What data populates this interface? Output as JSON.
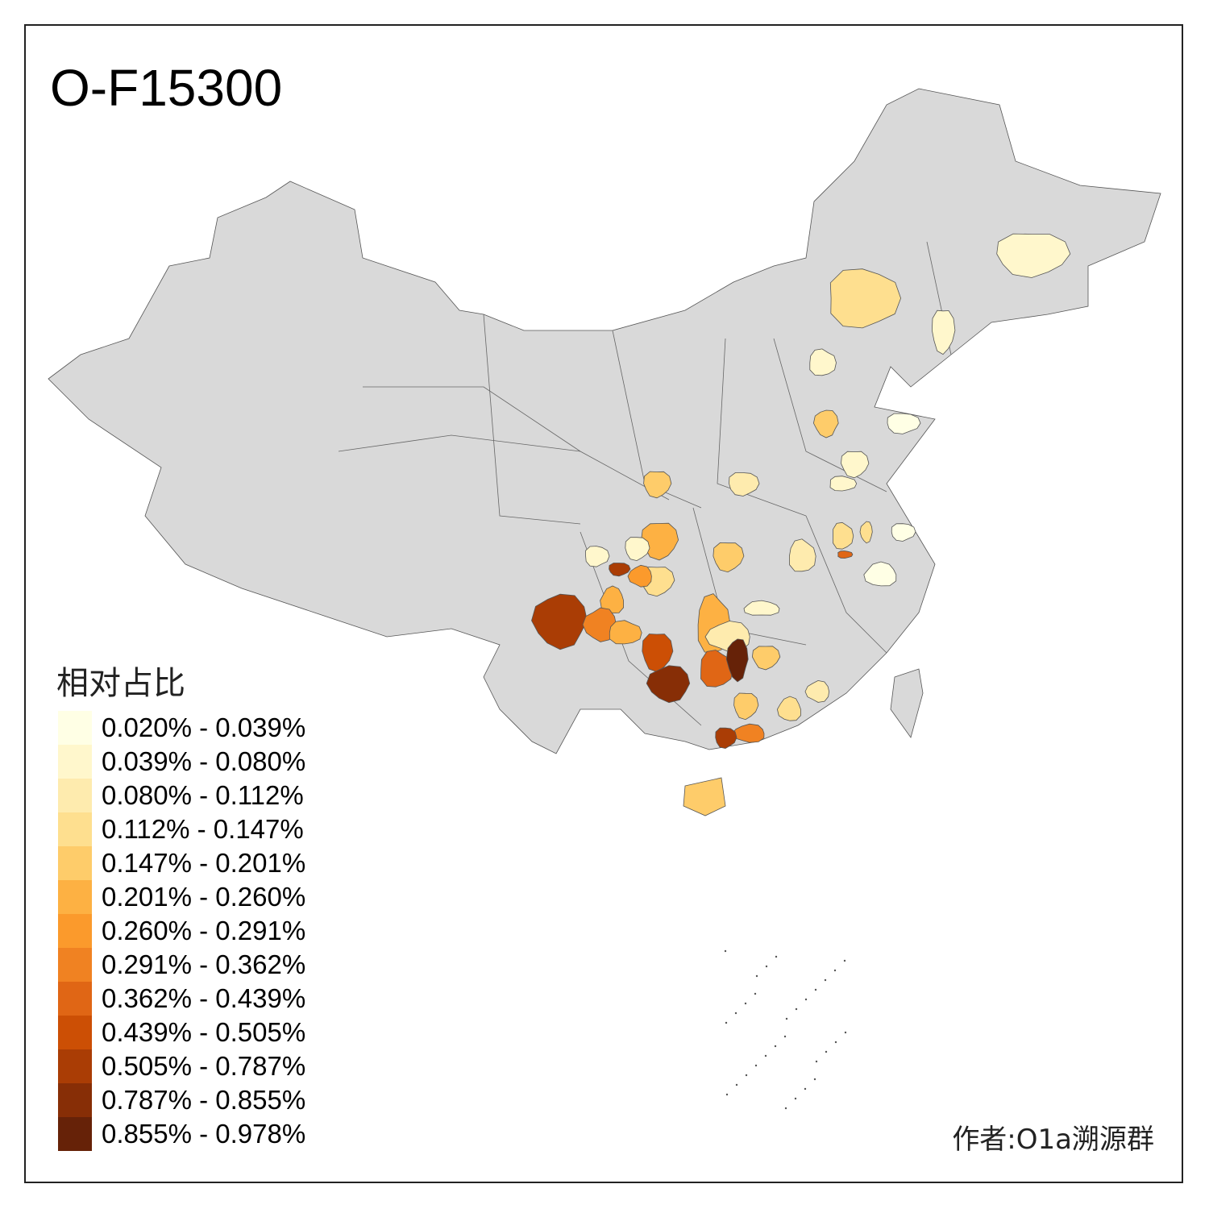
{
  "title": "O-F15300",
  "legend": {
    "title": "相对占比",
    "items": [
      {
        "label": "0.020% - 0.039%",
        "color": "#FFFFE5"
      },
      {
        "label": "0.039% - 0.080%",
        "color": "#FFF7CC"
      },
      {
        "label": "0.080% - 0.112%",
        "color": "#FEEBAE"
      },
      {
        "label": "0.112% - 0.147%",
        "color": "#FEDF8F"
      },
      {
        "label": "0.147% - 0.201%",
        "color": "#FECC6A"
      },
      {
        "label": "0.201% - 0.260%",
        "color": "#FDB143"
      },
      {
        "label": "0.260% - 0.291%",
        "color": "#FB9A2C"
      },
      {
        "label": "0.291% - 0.362%",
        "color": "#F08222"
      },
      {
        "label": "0.362% - 0.439%",
        "color": "#E06615"
      },
      {
        "label": "0.439% - 0.505%",
        "color": "#CC4F05"
      },
      {
        "label": "0.505% - 0.787%",
        "color": "#AA3D05"
      },
      {
        "label": "0.787% - 0.855%",
        "color": "#872E06"
      },
      {
        "label": "0.855% - 0.978%",
        "color": "#662208"
      }
    ]
  },
  "no_data_color": "#D9D9D9",
  "author": "作者:O1a溯源群"
}
